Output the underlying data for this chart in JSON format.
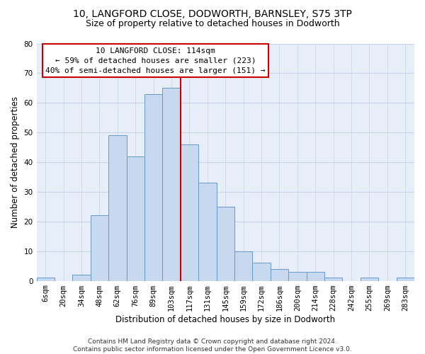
{
  "title1": "10, LANGFORD CLOSE, DODWORTH, BARNSLEY, S75 3TP",
  "title2": "Size of property relative to detached houses in Dodworth",
  "xlabel": "Distribution of detached houses by size in Dodworth",
  "ylabel": "Number of detached properties",
  "categories": [
    "6sqm",
    "20sqm",
    "34sqm",
    "48sqm",
    "62sqm",
    "76sqm",
    "89sqm",
    "103sqm",
    "117sqm",
    "131sqm",
    "145sqm",
    "159sqm",
    "172sqm",
    "186sqm",
    "200sqm",
    "214sqm",
    "228sqm",
    "242sqm",
    "255sqm",
    "269sqm",
    "283sqm"
  ],
  "values": [
    1,
    0,
    2,
    22,
    49,
    42,
    63,
    65,
    46,
    33,
    25,
    10,
    6,
    4,
    3,
    3,
    1,
    0,
    1,
    0,
    1
  ],
  "bar_color": "#c8d9ef",
  "bar_edge_color": "#6699cc",
  "vline_color": "#cc0000",
  "annotation_line1": "10 LANGFORD CLOSE: 114sqm",
  "annotation_line2": "← 59% of detached houses are smaller (223)",
  "annotation_line3": "40% of semi-detached houses are larger (151) →",
  "annotation_box_color": "white",
  "annotation_box_edge_color": "#cc0000",
  "ylim": [
    0,
    80
  ],
  "yticks": [
    0,
    10,
    20,
    30,
    40,
    50,
    60,
    70,
    80
  ],
  "grid_color": "#c8d4e8",
  "bg_color": "#e8eef8",
  "footer_text": "Contains HM Land Registry data © Crown copyright and database right 2024.\nContains public sector information licensed under the Open Government Licence v3.0.",
  "title1_fontsize": 10,
  "title2_fontsize": 9,
  "xlabel_fontsize": 8.5,
  "ylabel_fontsize": 8.5,
  "tick_fontsize": 7.5,
  "annotation_fontsize": 8,
  "footer_fontsize": 6.5
}
